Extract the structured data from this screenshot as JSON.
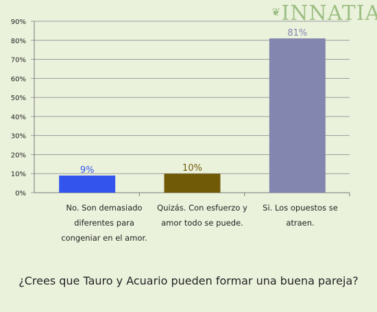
{
  "logo": {
    "text": "INNATIA",
    "color": "#9dbf84"
  },
  "question": "¿Crees que Tauro y Acuario pueden formar una buena pareja?",
  "chart_data": {
    "type": "bar",
    "title": "",
    "xlabel": "",
    "ylabel": "",
    "ylim": [
      0,
      90
    ],
    "yticks": [
      "0%",
      "10%",
      "20%",
      "30%",
      "40%",
      "50%",
      "60%",
      "70%",
      "80%",
      "90%"
    ],
    "grid": true,
    "categories": [
      "No. Son demasiado diferentes para congeniar en el amor.",
      "Quizás. Con esfuerzo y amor todo se puede.",
      "Si. Los opuestos se atraen."
    ],
    "values": [
      9,
      10,
      81
    ],
    "data_labels": [
      "9%",
      "10%",
      "81%"
    ],
    "bar_colors": [
      "#3355ee",
      "#705a08",
      "#8386ae"
    ],
    "label_colors": [
      "#3355ee",
      "#705a08",
      "#8386ae"
    ]
  }
}
